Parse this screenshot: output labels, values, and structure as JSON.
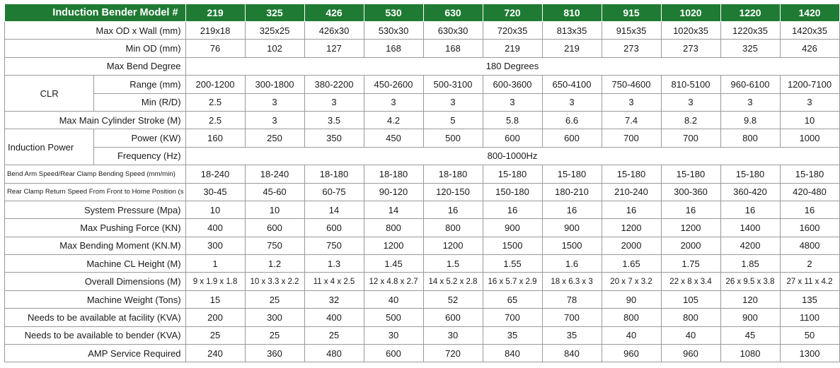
{
  "header": {
    "title": "Induction Bender Model #",
    "models": [
      "219",
      "325",
      "426",
      "530",
      "630",
      "720",
      "810",
      "915",
      "1020",
      "1220",
      "1420"
    ]
  },
  "rows": {
    "max_od": {
      "label": "Max OD x Wall (mm)",
      "values": [
        "219x18",
        "325x25",
        "426x30",
        "530x30",
        "630x30",
        "720x35",
        "813x35",
        "915x35",
        "1020x35",
        "1220x35",
        "1420x35"
      ]
    },
    "min_od": {
      "label": "Min OD (mm)",
      "values": [
        "76",
        "102",
        "127",
        "168",
        "168",
        "219",
        "219",
        "273",
        "273",
        "325",
        "426"
      ]
    },
    "max_bend": {
      "label": "Max Bend Degree",
      "value": "180 Degrees"
    },
    "clr": {
      "group": "CLR",
      "range": {
        "label": "Range (mm)",
        "values": [
          "200-1200",
          "300-1800",
          "380-2200",
          "450-2600",
          "500-3100",
          "600-3600",
          "650-4100",
          "750-4600",
          "810-5100",
          "960-6100",
          "1200-7100"
        ]
      },
      "min": {
        "label": "Min (R/D)",
        "values": [
          "2.5",
          "3",
          "3",
          "3",
          "3",
          "3",
          "3",
          "3",
          "3",
          "3",
          "3"
        ]
      }
    },
    "stroke": {
      "label": "Max Main Cylinder Stroke (M)",
      "values": [
        "2.5",
        "3",
        "3.5",
        "4.2",
        "5",
        "5.8",
        "6.6",
        "7.4",
        "8.2",
        "9.8",
        "10"
      ]
    },
    "induction": {
      "group": "Induction Power",
      "power": {
        "label": "Power (KW)",
        "values": [
          "160",
          "250",
          "350",
          "450",
          "500",
          "600",
          "600",
          "700",
          "700",
          "800",
          "1000"
        ]
      },
      "frequency": {
        "label": "Frequency (Hz)",
        "value": "800-1000Hz"
      }
    },
    "arm_speed": {
      "label": "Bend Arm Speed/Rear Clamp Bending Speed (mm/min)",
      "values": [
        "18-240",
        "18-240",
        "18-180",
        "18-180",
        "18-180",
        "15-180",
        "15-180",
        "15-180",
        "15-180",
        "15-180",
        "15-180"
      ]
    },
    "return_speed": {
      "label": "Rear Clamp Return Speed From Front to Home Position (s",
      "values": [
        "30-45",
        "45-60",
        "60-75",
        "90-120",
        "120-150",
        "150-180",
        "180-210",
        "210-240",
        "300-360",
        "360-420",
        "420-480"
      ]
    },
    "pressure": {
      "label": "System Pressure (Mpa)",
      "values": [
        "10",
        "10",
        "14",
        "14",
        "16",
        "16",
        "16",
        "16",
        "16",
        "16",
        "16"
      ]
    },
    "pushing": {
      "label": "Max Pushing Force (KN)",
      "values": [
        "400",
        "600",
        "600",
        "800",
        "800",
        "900",
        "900",
        "1200",
        "1200",
        "1400",
        "1600"
      ]
    },
    "moment": {
      "label": "Max Bending Moment (KN.M)",
      "values": [
        "300",
        "750",
        "750",
        "1200",
        "1200",
        "1500",
        "1500",
        "2000",
        "2000",
        "4200",
        "4800"
      ]
    },
    "cl_height": {
      "label": "Machine CL Height (M)",
      "values": [
        "1",
        "1.2",
        "1.3",
        "1.45",
        "1.5",
        "1.55",
        "1.6",
        "1.65",
        "1.75",
        "1.85",
        "2"
      ]
    },
    "dimensions": {
      "label": "Overall Dimensions (M)",
      "values": [
        "9 x 1.9 x 1.8",
        "10 x 3.3 x 2.2",
        "11 x 4 x 2.5",
        "12 x 4.8 x 2.7",
        "14 x 5.2 x 2.8",
        "16 x 5.7 x 2.9",
        "18 x 6.3 x 3",
        "20 x 7 x 3.2",
        "22 x 8 x 3.4",
        "26 x 9.5 x 3.8",
        "27 x 11 x 4.2"
      ]
    },
    "weight": {
      "label": "Machine Weight (Tons)",
      "values": [
        "15",
        "25",
        "32",
        "40",
        "52",
        "65",
        "78",
        "90",
        "105",
        "120",
        "135"
      ]
    },
    "facility_kva": {
      "label": "Needs to be available at facility (KVA)",
      "values": [
        "200",
        "300",
        "400",
        "500",
        "600",
        "700",
        "700",
        "800",
        "800",
        "900",
        "1100"
      ]
    },
    "bender_kva": {
      "label": "Needs to be available to bender (KVA)",
      "values": [
        "25",
        "25",
        "25",
        "30",
        "30",
        "35",
        "35",
        "40",
        "40",
        "45",
        "50"
      ]
    },
    "amp": {
      "label": "AMP Service Required",
      "values": [
        "240",
        "360",
        "480",
        "600",
        "720",
        "840",
        "840",
        "960",
        "960",
        "1080",
        "1300"
      ]
    }
  }
}
